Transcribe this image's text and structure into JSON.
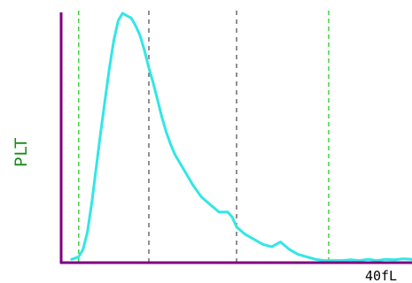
{
  "chart_data": {
    "type": "area",
    "ylabel": "PLT",
    "xlabel": "40fL",
    "xlim": [
      0,
      40
    ],
    "ylim": [
      0,
      100
    ],
    "grid": false,
    "colors": {
      "curve": "#33e6e6",
      "axes": "#800080",
      "discriminator": "#22cc22",
      "marker": "#555555",
      "ylabel": "#1a8c1a",
      "xlabel": "#000000"
    },
    "discriminators": [
      2.0,
      30.5
    ],
    "markers": [
      10.0,
      20.0
    ],
    "series": [
      {
        "x": [
          1.2,
          2.0,
          2.5,
          3.0,
          3.5,
          4.0,
          4.5,
          5.0,
          5.5,
          6.0,
          6.5,
          7.0,
          7.5,
          8.0,
          8.5,
          9.0,
          9.5,
          10.0,
          10.5,
          11.0,
          11.5,
          12.0,
          12.5,
          13.0,
          14.0,
          15.0,
          16.0,
          17.0,
          18.0,
          19.0,
          19.5,
          20.0,
          21.0,
          22.0,
          23.0,
          24.0,
          25.0,
          26.0,
          27.0,
          28.0,
          29.0,
          30.0,
          31.0,
          32.0,
          33.0,
          34.0,
          35.0,
          36.0,
          37.0,
          38.0,
          39.0,
          40.0
        ],
        "y": [
          1,
          2,
          5,
          12,
          24,
          38,
          52,
          65,
          78,
          89,
          97,
          100,
          99,
          98,
          95,
          91,
          85,
          78,
          72,
          65,
          58,
          52,
          47,
          43,
          37,
          31,
          26,
          23,
          20,
          20,
          18,
          14,
          11,
          9,
          7,
          6,
          8,
          5,
          3,
          2,
          1,
          0.5,
          0.5,
          0.5,
          0.8,
          0.5,
          1,
          0.5,
          1,
          0.8,
          1.2,
          1
        ]
      }
    ]
  }
}
